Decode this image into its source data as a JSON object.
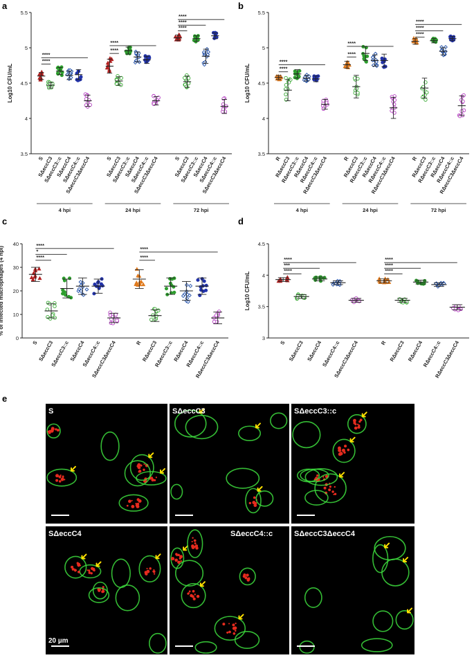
{
  "panel_letters": [
    "a",
    "b",
    "c",
    "d",
    "e"
  ],
  "colors": {
    "S": "#b22222",
    "R": "#e07b1f",
    "dC3": "#3aaa35",
    "dC3c": "#2e9e2e",
    "dC4": "#1f4ea8",
    "dC4c": "#2233aa",
    "dC3dC4": "#b53fc2",
    "membrane": "#3ddc3d",
    "bacteria": "#e62b1e",
    "arrow": "#ffe000"
  },
  "significance": {
    "four": "****",
    "three": "***",
    "one": "*"
  },
  "chart_data": [
    {
      "id": "a",
      "type": "scatter",
      "ylabel": "Log10 CFU/mL",
      "ylim": [
        3.5,
        5.5
      ],
      "yticks": [
        "3.5",
        "4",
        "4.5",
        "5",
        "5.5"
      ],
      "groups": [
        {
          "label": "4 hpi",
          "categories": [
            "S",
            "SΔeccC3",
            "SΔeccC3::c",
            "SΔeccC4",
            "SΔeccC4::c",
            "SΔeccC3ΔeccC4"
          ],
          "means": [
            4.6,
            4.47,
            4.67,
            4.61,
            4.62,
            4.25
          ],
          "sds": [
            0.05,
            0.04,
            0.05,
            0.06,
            0.07,
            0.08
          ]
        },
        {
          "label": "24 hpi",
          "categories": [
            "S",
            "SΔeccC3",
            "SΔeccC3::c",
            "SΔeccC4",
            "SΔeccC4::c",
            "SΔeccC3ΔeccC4"
          ],
          "means": [
            4.74,
            4.53,
            4.96,
            4.87,
            4.83,
            4.25
          ],
          "sds": [
            0.1,
            0.06,
            0.05,
            0.07,
            0.05,
            0.06
          ]
        },
        {
          "label": "72 hpi",
          "categories": [
            "S",
            "SΔeccC3",
            "SΔeccC3::c",
            "SΔeccC4",
            "SΔeccC4::c",
            "SΔeccC3ΔeccC4"
          ],
          "means": [
            5.14,
            4.52,
            5.13,
            4.88,
            5.17,
            4.17
          ],
          "sds": [
            0.04,
            0.08,
            0.04,
            0.1,
            0.04,
            0.1
          ]
        }
      ],
      "series_colors": [
        "S",
        "dC3",
        "dC3c",
        "dC4",
        "dC4c",
        "dC3dC4"
      ],
      "brackets": [
        {
          "g1": 0,
          "c1": 0,
          "g2": 0,
          "c2": 1,
          "y": 4.77,
          "text": "****"
        },
        {
          "g1": 0,
          "c1": 0,
          "g2": 0,
          "c2": 5,
          "y": 4.86,
          "text": "****"
        },
        {
          "g1": 1,
          "c1": 0,
          "g2": 1,
          "c2": 1,
          "y": 4.92,
          "text": "****"
        },
        {
          "g1": 1,
          "c1": 0,
          "g2": 1,
          "c2": 5,
          "y": 5.03,
          "text": "****"
        },
        {
          "g1": 2,
          "c1": 0,
          "g2": 2,
          "c2": 1,
          "y": 5.24,
          "text": "****"
        },
        {
          "g1": 2,
          "c1": 0,
          "g2": 2,
          "c2": 3,
          "y": 5.32,
          "text": "****"
        },
        {
          "g1": 2,
          "c1": 0,
          "g2": 2,
          "c2": 5,
          "y": 5.4,
          "text": "****"
        }
      ]
    },
    {
      "id": "b",
      "type": "scatter",
      "ylabel": "Log10 CFU/mL",
      "ylim": [
        3.5,
        5.5
      ],
      "yticks": [
        "3.5",
        "4",
        "4.5",
        "5",
        "5.5"
      ],
      "groups": [
        {
          "label": "4 hpi",
          "categories": [
            "R",
            "RΔeccC3",
            "RΔeccC3::c",
            "RΔeccC4",
            "RΔeccC4::c",
            "RΔeccC3ΔeccC4"
          ],
          "means": [
            4.58,
            4.4,
            4.63,
            4.57,
            4.56,
            4.2
          ],
          "sds": [
            0.03,
            0.15,
            0.06,
            0.04,
            0.04,
            0.07
          ]
        },
        {
          "label": "24 hpi",
          "categories": [
            "R",
            "RΔeccC3",
            "RΔeccC3::c",
            "RΔeccC4",
            "RΔeccC4::c",
            "RΔeccC3ΔeccC4"
          ],
          "means": [
            4.76,
            4.45,
            4.92,
            4.82,
            4.82,
            4.15
          ],
          "sds": [
            0.05,
            0.16,
            0.1,
            0.08,
            0.09,
            0.15
          ]
        },
        {
          "label": "72 hpi",
          "categories": [
            "R",
            "RΔeccC3",
            "RΔeccC3::c",
            "RΔeccC4",
            "RΔeccC4::c",
            "RΔeccC3ΔeccC4"
          ],
          "means": [
            5.09,
            4.43,
            5.1,
            4.95,
            5.13,
            4.18
          ],
          "sds": [
            0.04,
            0.14,
            0.03,
            0.05,
            0.03,
            0.14
          ]
        }
      ],
      "series_colors": [
        "R",
        "dC3",
        "dC3c",
        "dC4",
        "dC4c",
        "dC3dC4"
      ],
      "brackets": [
        {
          "g1": 0,
          "c1": 0,
          "g2": 0,
          "c2": 1,
          "y": 4.66,
          "text": "****"
        },
        {
          "g1": 0,
          "c1": 0,
          "g2": 0,
          "c2": 5,
          "y": 4.76,
          "text": "****"
        },
        {
          "g1": 1,
          "c1": 0,
          "g2": 1,
          "c2": 1,
          "y": 4.87,
          "text": "****"
        },
        {
          "g1": 1,
          "c1": 0,
          "g2": 1,
          "c2": 5,
          "y": 5.02,
          "text": "****"
        },
        {
          "g1": 2,
          "c1": 0,
          "g2": 2,
          "c2": 1,
          "y": 5.15,
          "text": "****"
        },
        {
          "g1": 2,
          "c1": 0,
          "g2": 2,
          "c2": 3,
          "y": 5.24,
          "text": "****"
        },
        {
          "g1": 2,
          "c1": 0,
          "g2": 2,
          "c2": 5,
          "y": 5.33,
          "text": "****"
        }
      ]
    },
    {
      "id": "c",
      "type": "scatter",
      "ylabel": "% of infected macrophages (4 hpi)",
      "ylim": [
        0,
        40
      ],
      "yticks": [
        "0",
        "10",
        "20",
        "30",
        "40"
      ],
      "groups": [
        {
          "label": "",
          "categories": [
            "S",
            "SΔeccC3",
            "SΔeccC3::c",
            "SΔeccC4",
            "SΔeccC4::c",
            "SΔeccC3ΔeccC4",
            "R",
            "RΔeccC3",
            "RΔeccC3::c",
            "RΔeccC4",
            "RΔeccC4::c",
            "RΔeccC3ΔeccC4"
          ],
          "means": [
            27,
            11.5,
            21,
            22,
            22,
            8.5,
            25,
            9.5,
            22,
            20,
            22,
            8.5
          ],
          "sds": [
            3,
            3,
            4,
            3.5,
            3,
            2,
            4,
            2.5,
            3.5,
            4,
            3.5,
            2.5
          ]
        }
      ],
      "series_colors": [
        "S",
        "dC3",
        "dC3c",
        "dC4",
        "dC4c",
        "dC3dC4",
        "R",
        "dC3",
        "dC3c",
        "dC4",
        "dC4c",
        "dC3dC4"
      ],
      "brackets": [
        {
          "g1": 0,
          "c1": 0,
          "g2": 0,
          "c2": 1,
          "y": 33,
          "text": "****"
        },
        {
          "g1": 0,
          "c1": 0,
          "g2": 0,
          "c2": 2,
          "y": 35.5,
          "text": "*"
        },
        {
          "g1": 0,
          "c1": 0,
          "g2": 0,
          "c2": 5,
          "y": 38,
          "text": "****"
        },
        {
          "g1": 0,
          "c1": 6,
          "g2": 0,
          "c2": 7,
          "y": 33,
          "text": "****"
        },
        {
          "g1": 0,
          "c1": 6,
          "g2": 0,
          "c2": 11,
          "y": 36.5,
          "text": "****"
        }
      ]
    },
    {
      "id": "d",
      "type": "scatter",
      "ylabel": "Log10 CFU/mL",
      "ylim": [
        3,
        4.5
      ],
      "yticks": [
        "3",
        "3.5",
        "4",
        "4.5"
      ],
      "groups": [
        {
          "label": "",
          "categories": [
            "S",
            "SΔeccC3",
            "SΔeccC4",
            "SΔeccC4::c",
            "SΔeccC3ΔeccC4",
            "R",
            "RΔeccC3",
            "RΔeccC4",
            "RΔeccC4::c",
            "RΔeccC3ΔeccC4"
          ],
          "means": [
            3.93,
            3.66,
            3.94,
            3.88,
            3.6,
            3.91,
            3.6,
            3.89,
            3.85,
            3.49
          ],
          "sds": [
            0.03,
            0.03,
            0.03,
            0.03,
            0.03,
            0.03,
            0.03,
            0.03,
            0.03,
            0.04
          ]
        }
      ],
      "series_colors": [
        "S",
        "dC3",
        "dC3c",
        "dC4",
        "dC3dC4",
        "R",
        "dC3",
        "dC3c",
        "dC4",
        "dC3dC4"
      ],
      "brackets": [
        {
          "g1": 0,
          "c1": 0,
          "g2": 0,
          "c2": 1,
          "y": 4.02,
          "text": "****"
        },
        {
          "g1": 0,
          "c1": 0,
          "g2": 0,
          "c2": 2,
          "y": 4.11,
          "text": "***"
        },
        {
          "g1": 0,
          "c1": 0,
          "g2": 0,
          "c2": 4,
          "y": 4.2,
          "text": "****"
        },
        {
          "g1": 0,
          "c1": 5,
          "g2": 0,
          "c2": 6,
          "y": 4.02,
          "text": "****"
        },
        {
          "g1": 0,
          "c1": 5,
          "g2": 0,
          "c2": 7,
          "y": 4.11,
          "text": "****"
        },
        {
          "g1": 0,
          "c1": 5,
          "g2": 0,
          "c2": 9,
          "y": 4.2,
          "text": "****"
        }
      ]
    }
  ],
  "micrographs": {
    "tiles": [
      "S",
      "SΔeccC3",
      "SΔeccC3::c",
      "SΔeccC4",
      "SΔeccC4::c",
      "SΔeccC3ΔeccC4"
    ],
    "scale_label": "20 µm"
  }
}
